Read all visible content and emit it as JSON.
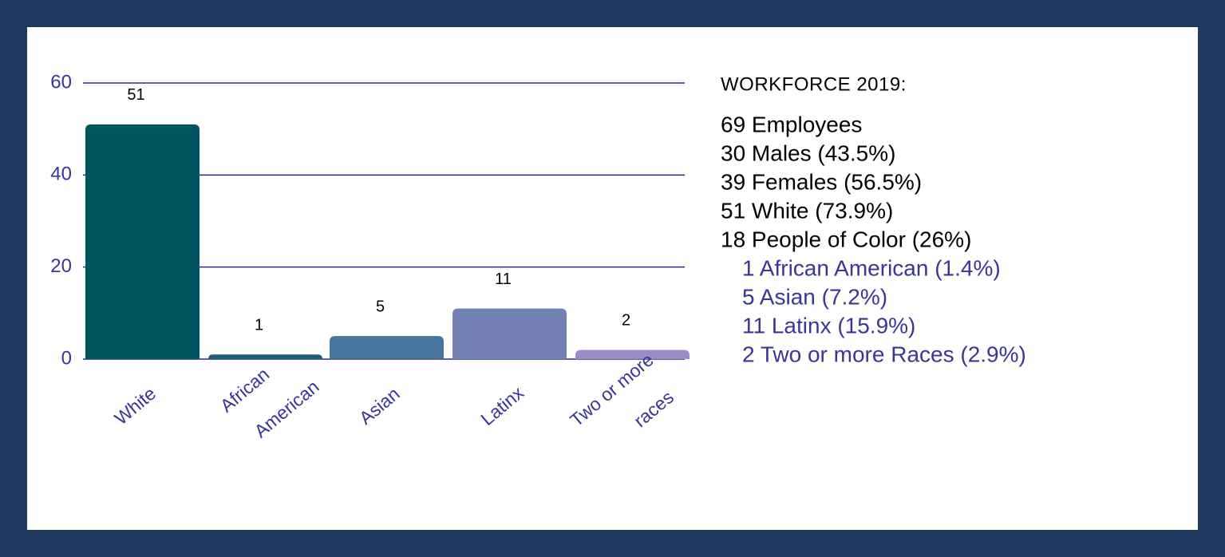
{
  "chart_data": {
    "type": "bar",
    "categories": [
      "White",
      "African American",
      "Asian",
      "Latinx",
      "Two or more races"
    ],
    "values": [
      51,
      1,
      5,
      11,
      2
    ],
    "colors": [
      "#00555f",
      "#1d5f7f",
      "#47749c",
      "#7380b6",
      "#9b8bc9"
    ],
    "ylim": [
      0,
      60
    ],
    "yticks": [
      0,
      20,
      40,
      60
    ],
    "grid": true
  },
  "panel": {
    "title": "WORKFORCE 2019:",
    "summary": [
      "69 Employees",
      "30 Males (43.5%)",
      "39 Females (56.5%)",
      "51 White (73.9%)",
      "18 People of Color (26%)"
    ],
    "breakdown": [
      "1 African American (1.4%)",
      "5 Asian (7.2%)",
      "11 Latinx (15.9%)",
      "2 Two or more Races (2.9%)"
    ]
  }
}
